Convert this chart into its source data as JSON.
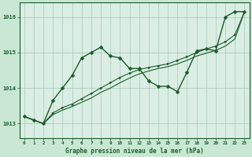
{
  "title": "Graphe pression niveau de la mer (hPa)",
  "background_color": "#c8e8d4",
  "plot_bg_color": "#daeee4",
  "grid_color": "#a8c8b8",
  "line_color": "#1a5c2a",
  "xlim": [
    -0.5,
    23.5
  ],
  "ylim": [
    1012.6,
    1016.4
  ],
  "yticks": [
    1013,
    1014,
    1015,
    1016
  ],
  "xticks": [
    0,
    1,
    2,
    3,
    4,
    5,
    6,
    7,
    8,
    9,
    10,
    11,
    12,
    13,
    14,
    15,
    16,
    17,
    18,
    19,
    20,
    21,
    22,
    23
  ],
  "series1_x": [
    0,
    1,
    2,
    3,
    4,
    5,
    6,
    7,
    8,
    9,
    10,
    11,
    12,
    13,
    14,
    15,
    16,
    17,
    18,
    19,
    20,
    21,
    22,
    23
  ],
  "series1_y": [
    1013.2,
    1013.1,
    1013.0,
    1013.65,
    1014.0,
    1014.35,
    1014.85,
    1015.0,
    1015.15,
    1014.9,
    1014.85,
    1014.55,
    1014.55,
    1014.2,
    1014.05,
    1014.05,
    1013.9,
    1014.45,
    1015.05,
    1015.1,
    1015.05,
    1016.0,
    1016.15,
    1016.15
  ],
  "series2_x": [
    0,
    1,
    2,
    3,
    4,
    5,
    6,
    7,
    8,
    9,
    10,
    11,
    12,
    13,
    14,
    15,
    16,
    17,
    18,
    19,
    20,
    21,
    22,
    23
  ],
  "series2_y": [
    1013.2,
    1013.1,
    1013.0,
    1013.3,
    1013.45,
    1013.55,
    1013.7,
    1013.85,
    1014.0,
    1014.15,
    1014.3,
    1014.42,
    1014.52,
    1014.58,
    1014.63,
    1014.68,
    1014.78,
    1014.88,
    1015.0,
    1015.1,
    1015.18,
    1015.3,
    1015.5,
    1016.15
  ],
  "series3_x": [
    0,
    1,
    2,
    3,
    4,
    5,
    6,
    7,
    8,
    9,
    10,
    11,
    12,
    13,
    14,
    15,
    16,
    17,
    18,
    19,
    20,
    21,
    22,
    23
  ],
  "series3_y": [
    1013.2,
    1013.1,
    1013.0,
    1013.25,
    1013.38,
    1013.48,
    1013.6,
    1013.72,
    1013.88,
    1014.0,
    1014.15,
    1014.28,
    1014.4,
    1014.48,
    1014.55,
    1014.6,
    1014.68,
    1014.78,
    1014.9,
    1014.98,
    1015.06,
    1015.18,
    1015.38,
    1016.15
  ]
}
